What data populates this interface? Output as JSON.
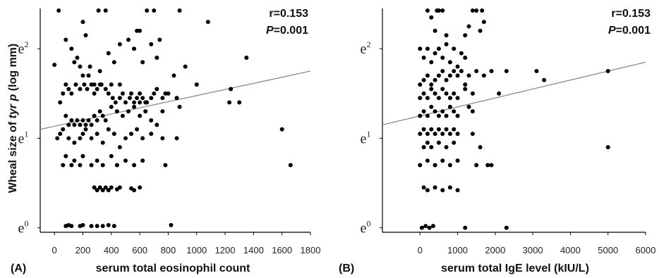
{
  "chart_data": [
    {
      "type": "scatter",
      "panel_label": "(A)",
      "xlabel": "serum total eosinophil count",
      "ylabel_prefix": "Wheal size of ",
      "ylabel_italic": "tyr p",
      "ylabel_suffix": " (log mm)",
      "stat_r": "r=0.153",
      "stat_p_italic": "P",
      "stat_p_value": "=0.001",
      "xlim": [
        -100,
        1800
      ],
      "ylim": [
        -0.05,
        2.45
      ],
      "xticks": [
        0,
        200,
        400,
        600,
        800,
        1000,
        1200,
        1400,
        1600,
        1800
      ],
      "xtick_labels": [
        "0",
        "200",
        "400",
        "600",
        "800",
        "1000",
        "1200",
        "1400",
        "1600",
        "1800"
      ],
      "yticks": [
        0,
        1,
        2
      ],
      "ytick_base": "e",
      "ytick_exps": [
        "0",
        "1",
        "2"
      ],
      "trend": {
        "x": [
          -100,
          1800
        ],
        "y": [
          1.1,
          1.75
        ]
      },
      "points": [
        [
          30,
          2.45
        ],
        [
          140,
          1.85
        ],
        [
          80,
          2.1
        ],
        [
          120,
          2.0
        ],
        [
          160,
          1.9
        ],
        [
          200,
          2.3
        ],
        [
          220,
          2.15
        ],
        [
          250,
          1.8
        ],
        [
          310,
          2.6
        ],
        [
          360,
          2.6
        ],
        [
          320,
          1.6
        ],
        [
          380,
          1.95
        ],
        [
          420,
          1.85
        ],
        [
          460,
          2.05
        ],
        [
          520,
          2.1
        ],
        [
          560,
          2.0
        ],
        [
          580,
          2.2
        ],
        [
          600,
          2.2
        ],
        [
          620,
          1.85
        ],
        [
          650,
          2.45
        ],
        [
          680,
          2.05
        ],
        [
          700,
          2.45
        ],
        [
          720,
          1.9
        ],
        [
          740,
          2.1
        ],
        [
          880,
          2.45
        ],
        [
          1080,
          2.3
        ],
        [
          1350,
          1.9
        ],
        [
          0,
          1.82
        ],
        [
          180,
          1.8
        ],
        [
          200,
          1.7
        ],
        [
          240,
          1.7
        ],
        [
          280,
          1.6
        ],
        [
          320,
          1.75
        ],
        [
          400,
          1.6
        ],
        [
          460,
          1.6
        ],
        [
          540,
          1.5
        ],
        [
          600,
          1.5
        ],
        [
          640,
          1.4
        ],
        [
          680,
          1.45
        ],
        [
          720,
          1.55
        ],
        [
          780,
          1.5
        ],
        [
          840,
          1.7
        ],
        [
          920,
          1.8
        ],
        [
          1000,
          1.6
        ],
        [
          1240,
          1.55
        ],
        [
          40,
          1.4
        ],
        [
          60,
          1.5
        ],
        [
          80,
          1.6
        ],
        [
          100,
          1.55
        ],
        [
          120,
          1.5
        ],
        [
          150,
          1.6
        ],
        [
          180,
          1.55
        ],
        [
          210,
          1.6
        ],
        [
          230,
          1.55
        ],
        [
          260,
          1.6
        ],
        [
          280,
          1.5
        ],
        [
          300,
          1.55
        ],
        [
          330,
          1.6
        ],
        [
          360,
          1.55
        ],
        [
          380,
          1.5
        ],
        [
          410,
          1.45
        ],
        [
          430,
          1.4
        ],
        [
          460,
          1.45
        ],
        [
          480,
          1.5
        ],
        [
          500,
          1.4
        ],
        [
          530,
          1.45
        ],
        [
          560,
          1.4
        ],
        [
          580,
          1.45
        ],
        [
          600,
          1.4
        ],
        [
          620,
          1.45
        ],
        [
          650,
          1.4
        ],
        [
          700,
          1.5
        ],
        [
          760,
          1.45
        ],
        [
          800,
          1.5
        ],
        [
          860,
          1.45
        ],
        [
          1230,
          1.4
        ],
        [
          1300,
          1.4
        ],
        [
          80,
          1.25
        ],
        [
          100,
          1.15
        ],
        [
          120,
          1.2
        ],
        [
          140,
          1.15
        ],
        [
          160,
          1.2
        ],
        [
          180,
          1.15
        ],
        [
          200,
          1.2
        ],
        [
          220,
          1.15
        ],
        [
          240,
          1.2
        ],
        [
          260,
          1.15
        ],
        [
          280,
          1.25
        ],
        [
          300,
          1.2
        ],
        [
          320,
          1.3
        ],
        [
          340,
          1.25
        ],
        [
          360,
          1.2
        ],
        [
          400,
          1.35
        ],
        [
          440,
          1.3
        ],
        [
          480,
          1.25
        ],
        [
          520,
          1.3
        ],
        [
          560,
          1.35
        ],
        [
          600,
          1.25
        ],
        [
          640,
          1.3
        ],
        [
          680,
          1.2
        ],
        [
          720,
          1.15
        ],
        [
          760,
          1.3
        ],
        [
          880,
          1.35
        ],
        [
          20,
          1.0
        ],
        [
          40,
          1.05
        ],
        [
          60,
          1.1
        ],
        [
          100,
          1.0
        ],
        [
          140,
          0.95
        ],
        [
          180,
          1.0
        ],
        [
          200,
          1.05
        ],
        [
          220,
          1.1
        ],
        [
          260,
          1.0
        ],
        [
          300,
          1.05
        ],
        [
          340,
          0.95
        ],
        [
          380,
          1.1
        ],
        [
          420,
          1.05
        ],
        [
          460,
          0.9
        ],
        [
          500,
          1.0
        ],
        [
          540,
          1.05
        ],
        [
          580,
          1.1
        ],
        [
          620,
          1.0
        ],
        [
          680,
          1.05
        ],
        [
          760,
          1.0
        ],
        [
          860,
          1.0
        ],
        [
          1600,
          1.1
        ],
        [
          60,
          0.7
        ],
        [
          80,
          0.8
        ],
        [
          120,
          0.7
        ],
        [
          140,
          0.75
        ],
        [
          180,
          0.7
        ],
        [
          200,
          0.8
        ],
        [
          260,
          0.7
        ],
        [
          300,
          0.75
        ],
        [
          340,
          0.7
        ],
        [
          400,
          0.8
        ],
        [
          440,
          0.7
        ],
        [
          500,
          0.75
        ],
        [
          560,
          0.7
        ],
        [
          620,
          0.75
        ],
        [
          780,
          0.7
        ],
        [
          1660,
          0.7
        ],
        [
          280,
          0.45
        ],
        [
          300,
          0.42
        ],
        [
          320,
          0.45
        ],
        [
          340,
          0.42
        ],
        [
          360,
          0.45
        ],
        [
          380,
          0.42
        ],
        [
          400,
          0.45
        ],
        [
          440,
          0.43
        ],
        [
          460,
          0.45
        ],
        [
          540,
          0.44
        ],
        [
          560,
          0.42
        ],
        [
          600,
          0.45
        ],
        [
          80,
          0.02
        ],
        [
          100,
          0.03
        ],
        [
          120,
          0.02
        ],
        [
          180,
          0.02
        ],
        [
          200,
          0.03
        ],
        [
          260,
          0.02
        ],
        [
          300,
          0.02
        ],
        [
          340,
          0.02
        ],
        [
          380,
          0.03
        ],
        [
          420,
          0.02
        ],
        [
          820,
          0.03
        ]
      ]
    },
    {
      "type": "scatter",
      "panel_label": "(B)",
      "xlabel": "serum total IgE level (kIU/L)",
      "stat_r": "r=0.153",
      "stat_p_italic": "P",
      "stat_p_value": "=0.001",
      "xlim": [
        -1000,
        6000
      ],
      "ylim": [
        -0.05,
        2.45
      ],
      "xticks": [
        0,
        1000,
        2000,
        3000,
        4000,
        5000,
        6000
      ],
      "xtick_labels": [
        "0",
        "1000",
        "2000",
        "3000",
        "4000",
        "5000",
        "6000"
      ],
      "yticks": [
        0,
        1,
        2
      ],
      "ytick_base": "e",
      "ytick_exps": [
        "0",
        "1",
        "2"
      ],
      "trend": {
        "x": [
          -1000,
          6000
        ],
        "y": [
          1.15,
          1.85
        ]
      },
      "points": [
        [
          200,
          2.55
        ],
        [
          300,
          2.35
        ],
        [
          400,
          2.2
        ],
        [
          450,
          2.5
        ],
        [
          500,
          2.55
        ],
        [
          600,
          2.45
        ],
        [
          700,
          2.15
        ],
        [
          1200,
          2.15
        ],
        [
          1300,
          2.25
        ],
        [
          1400,
          2.45
        ],
        [
          1500,
          2.45
        ],
        [
          1600,
          2.2
        ],
        [
          1650,
          2.45
        ],
        [
          1700,
          2.3
        ],
        [
          0,
          2.0
        ],
        [
          100,
          1.9
        ],
        [
          200,
          2.0
        ],
        [
          300,
          1.85
        ],
        [
          400,
          1.95
        ],
        [
          500,
          2.0
        ],
        [
          600,
          1.9
        ],
        [
          700,
          2.05
        ],
        [
          800,
          1.85
        ],
        [
          900,
          2.0
        ],
        [
          1000,
          1.8
        ],
        [
          1100,
          1.95
        ],
        [
          1200,
          1.9
        ],
        [
          0,
          1.6
        ],
        [
          100,
          1.65
        ],
        [
          200,
          1.7
        ],
        [
          300,
          1.6
        ],
        [
          400,
          1.65
        ],
        [
          500,
          1.7
        ],
        [
          600,
          1.75
        ],
        [
          700,
          1.65
        ],
        [
          800,
          1.7
        ],
        [
          900,
          1.75
        ],
        [
          1000,
          1.7
        ],
        [
          1100,
          1.75
        ],
        [
          1200,
          1.6
        ],
        [
          1300,
          1.7
        ],
        [
          1500,
          1.75
        ],
        [
          1700,
          1.7
        ],
        [
          1900,
          1.75
        ],
        [
          2300,
          1.75
        ],
        [
          3100,
          1.75
        ],
        [
          3300,
          1.65
        ],
        [
          5000,
          1.75
        ],
        [
          0,
          1.45
        ],
        [
          100,
          1.5
        ],
        [
          200,
          1.45
        ],
        [
          300,
          1.55
        ],
        [
          400,
          1.5
        ],
        [
          500,
          1.45
        ],
        [
          600,
          1.55
        ],
        [
          700,
          1.5
        ],
        [
          800,
          1.45
        ],
        [
          900,
          1.5
        ],
        [
          1000,
          1.45
        ],
        [
          1200,
          1.55
        ],
        [
          1400,
          1.5
        ],
        [
          2100,
          1.5
        ],
        [
          0,
          1.25
        ],
        [
          100,
          1.3
        ],
        [
          200,
          1.25
        ],
        [
          300,
          1.35
        ],
        [
          400,
          1.3
        ],
        [
          500,
          1.25
        ],
        [
          600,
          1.3
        ],
        [
          700,
          1.25
        ],
        [
          800,
          1.35
        ],
        [
          900,
          1.3
        ],
        [
          1000,
          1.25
        ],
        [
          1300,
          1.35
        ],
        [
          1400,
          1.3
        ],
        [
          0,
          1.05
        ],
        [
          100,
          1.1
        ],
        [
          200,
          1.05
        ],
        [
          300,
          1.1
        ],
        [
          400,
          1.05
        ],
        [
          500,
          1.1
        ],
        [
          600,
          1.05
        ],
        [
          700,
          1.1
        ],
        [
          800,
          1.05
        ],
        [
          900,
          1.1
        ],
        [
          1000,
          1.05
        ],
        [
          1400,
          1.05
        ],
        [
          100,
          0.9
        ],
        [
          200,
          0.95
        ],
        [
          300,
          0.9
        ],
        [
          500,
          0.95
        ],
        [
          700,
          0.9
        ],
        [
          900,
          0.95
        ],
        [
          1600,
          0.9
        ],
        [
          5000,
          0.9
        ],
        [
          0,
          0.7
        ],
        [
          200,
          0.75
        ],
        [
          400,
          0.7
        ],
        [
          600,
          0.75
        ],
        [
          800,
          0.7
        ],
        [
          1000,
          0.75
        ],
        [
          1500,
          0.7
        ],
        [
          1800,
          0.7
        ],
        [
          1900,
          0.7
        ],
        [
          100,
          0.45
        ],
        [
          200,
          0.42
        ],
        [
          400,
          0.45
        ],
        [
          600,
          0.42
        ],
        [
          800,
          0.45
        ],
        [
          1000,
          0.42
        ],
        [
          50,
          0.0
        ],
        [
          150,
          0.02
        ],
        [
          250,
          0.0
        ],
        [
          350,
          0.02
        ],
        [
          1200,
          0.0
        ],
        [
          2300,
          0.0
        ]
      ]
    }
  ]
}
